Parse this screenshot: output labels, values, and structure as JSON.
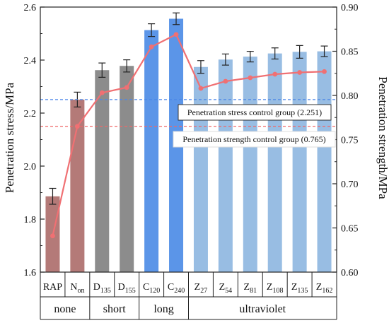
{
  "chart_data": {
    "type": "bar",
    "ylabel": "Penetration stress/MPa",
    "y2label": "Penetration strength/MPa",
    "ylim": [
      1.6,
      2.6
    ],
    "y2lim": [
      0.6,
      0.9
    ],
    "yticks": [
      "1.6",
      "1.8",
      "2.0",
      "2.2",
      "2.4",
      "2.6"
    ],
    "y2ticks": [
      "0.60",
      "0.65",
      "0.70",
      "0.75",
      "0.80",
      "0.85",
      "0.90"
    ],
    "categories": [
      {
        "main": "RAP",
        "sub": ""
      },
      {
        "main": "N",
        "sub": "on"
      },
      {
        "main": "D",
        "sub": "135"
      },
      {
        "main": "D",
        "sub": "155"
      },
      {
        "main": "C",
        "sub": "120"
      },
      {
        "main": "C",
        "sub": "240"
      },
      {
        "main": "Z",
        "sub": "27"
      },
      {
        "main": "Z",
        "sub": "54"
      },
      {
        "main": "Z",
        "sub": "81"
      },
      {
        "main": "Z",
        "sub": "108"
      },
      {
        "main": "Z",
        "sub": "135"
      },
      {
        "main": "Z",
        "sub": "162"
      }
    ],
    "bar_series": {
      "values": [
        1.886,
        2.251,
        2.362,
        2.378,
        2.513,
        2.556,
        2.374,
        2.402,
        2.413,
        2.425,
        2.431,
        2.433
      ],
      "errors": [
        0.03,
        0.028,
        0.027,
        0.023,
        0.024,
        0.022,
        0.024,
        0.021,
        0.02,
        0.021,
        0.024,
        0.02
      ],
      "colors": [
        "#b47a78",
        "#b47a78",
        "#8c8c8c",
        "#8c8c8c",
        "#5b95e8",
        "#5b95e8",
        "#98bde3",
        "#98bde3",
        "#98bde3",
        "#98bde3",
        "#98bde3",
        "#98bde3"
      ]
    },
    "line_series": {
      "axis": "right",
      "color": "#f07073",
      "values": [
        0.641,
        0.765,
        0.803,
        0.809,
        0.855,
        0.869,
        0.808,
        0.816,
        0.82,
        0.824,
        0.826,
        0.827
      ]
    },
    "reference_lines": [
      {
        "axis": "left",
        "value": 2.251,
        "color": "#4a86e8",
        "label": "Penetration stress control group (2.251)"
      },
      {
        "axis": "right",
        "value": 0.765,
        "color": "#f06767",
        "label": "Penetration strength control group (0.765)"
      }
    ],
    "groups": [
      {
        "label": "none",
        "start": 0,
        "end": 1
      },
      {
        "label": "short",
        "start": 2,
        "end": 3
      },
      {
        "label": "long",
        "start": 4,
        "end": 5
      },
      {
        "label": "ultraviolet",
        "start": 6,
        "end": 11
      }
    ]
  }
}
